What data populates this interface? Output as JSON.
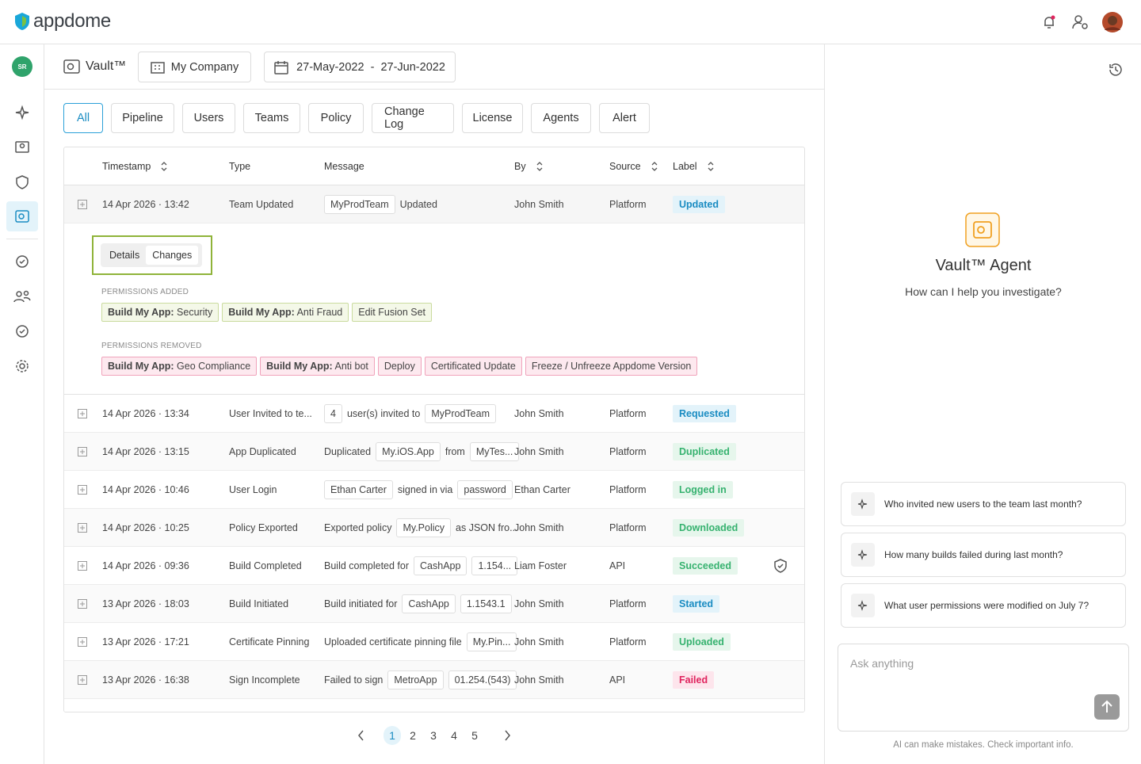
{
  "header": {
    "brand": "appdome"
  },
  "sidebar": {
    "badge": "SR"
  },
  "toolbar": {
    "title": "Vault™",
    "company": "My Company",
    "date_range": "27-May-2022  -  27-Jun-2022"
  },
  "tabs": {
    "items": [
      "All",
      "Pipeline",
      "Users",
      "Teams",
      "Policy",
      "Change Log",
      "License",
      "Agents",
      "Alert"
    ],
    "active": 0
  },
  "table": {
    "columns": [
      {
        "name": "Timestamp",
        "sortable": true
      },
      {
        "name": "Type",
        "sortable": false
      },
      {
        "name": "Message",
        "sortable": false
      },
      {
        "name": "By",
        "sortable": true
      },
      {
        "name": "Source",
        "sortable": true
      },
      {
        "name": "Label",
        "sortable": true
      }
    ],
    "rows": [
      {
        "timestamp": "14 Apr 2026 · 13:42",
        "type": "Team Updated",
        "message": [
          {
            "text": "MyProdTeam",
            "chip": true
          },
          {
            "text": "Updated",
            "chip": false
          }
        ],
        "by": "John Smith",
        "source": "Platform",
        "label": "Updated",
        "label_color": "#1a8cc2",
        "label_bg": "#e3f3fa",
        "expanded": true,
        "shield": false
      },
      {
        "timestamp": "14 Apr 2026 · 13:34",
        "type": "User Invited to te...",
        "message": [
          {
            "text": "4",
            "chip": true
          },
          {
            "text": "user(s) invited to",
            "chip": false
          },
          {
            "text": "MyProdTeam",
            "chip": true
          }
        ],
        "by": "John Smith",
        "source": "Platform",
        "label": "Requested",
        "label_color": "#1a8cc2",
        "label_bg": "#e3f3fa",
        "expanded": false,
        "shield": false
      },
      {
        "timestamp": "14 Apr 2026 · 13:15",
        "type": "App Duplicated",
        "message": [
          {
            "text": "Duplicated",
            "chip": false
          },
          {
            "text": "My.iOS.App",
            "chip": true
          },
          {
            "text": "from",
            "chip": false
          },
          {
            "text": "MyTes...",
            "chip": true
          }
        ],
        "by": "John Smith",
        "source": "Platform",
        "label": "Duplicated",
        "label_color": "#36b26f",
        "label_bg": "#e6f6ec",
        "expanded": false,
        "shield": false
      },
      {
        "timestamp": "14 Apr 2026 · 10:46",
        "type": "User Login",
        "message": [
          {
            "text": "Ethan Carter",
            "chip": true
          },
          {
            "text": "signed in via",
            "chip": false
          },
          {
            "text": "password",
            "chip": true
          }
        ],
        "by": "Ethan Carter",
        "source": "Platform",
        "label": "Logged in",
        "label_color": "#36b26f",
        "label_bg": "#e6f6ec",
        "expanded": false,
        "shield": false
      },
      {
        "timestamp": "14 Apr 2026 · 10:25",
        "type": "Policy Exported",
        "message": [
          {
            "text": "Exported policy",
            "chip": false
          },
          {
            "text": "My.Policy",
            "chip": true
          },
          {
            "text": "as JSON fro...",
            "chip": false
          }
        ],
        "by": "John Smith",
        "source": "Platform",
        "label": "Downloaded",
        "label_color": "#36b26f",
        "label_bg": "#e6f6ec",
        "expanded": false,
        "shield": false
      },
      {
        "timestamp": "14 Apr 2026 · 09:36",
        "type": "Build Completed",
        "message": [
          {
            "text": "Build completed for",
            "chip": false
          },
          {
            "text": "CashApp",
            "chip": true
          },
          {
            "text": "1.154...",
            "chip": true
          }
        ],
        "by": "Liam Foster",
        "source": "API",
        "label": "Succeeded",
        "label_color": "#36b26f",
        "label_bg": "#e6f6ec",
        "expanded": false,
        "shield": true
      },
      {
        "timestamp": "13 Apr 2026 · 18:03",
        "type": "Build Initiated",
        "message": [
          {
            "text": "Build initiated for",
            "chip": false
          },
          {
            "text": "CashApp",
            "chip": true
          },
          {
            "text": "1.1543.1",
            "chip": true
          }
        ],
        "by": "John Smith",
        "source": "Platform",
        "label": "Started",
        "label_color": "#1a8cc2",
        "label_bg": "#e3f3fa",
        "expanded": false,
        "shield": false
      },
      {
        "timestamp": "13 Apr 2026 · 17:21",
        "type": "Certificate Pinning",
        "message": [
          {
            "text": "Uploaded certificate pinning file",
            "chip": false
          },
          {
            "text": "My.Pin...",
            "chip": true
          }
        ],
        "by": "John Smith",
        "source": "Platform",
        "label": "Uploaded",
        "label_color": "#36b26f",
        "label_bg": "#e6f6ec",
        "expanded": false,
        "shield": false
      },
      {
        "timestamp": "13 Apr 2026 · 16:38",
        "type": "Sign Incomplete",
        "message": [
          {
            "text": "Failed to sign",
            "chip": false
          },
          {
            "text": "MetroApp",
            "chip": true
          },
          {
            "text": "01.254.(543)",
            "chip": true
          }
        ],
        "by": "John Smith",
        "source": "API",
        "label": "Failed",
        "label_color": "#e0245e",
        "label_bg": "#fde5ec",
        "expanded": false,
        "shield": false
      }
    ]
  },
  "details": {
    "toggle": [
      "Details",
      "Changes"
    ],
    "added_title": "PERMISSIONS ADDED",
    "added": [
      {
        "prefix": "Build My App:",
        "text": "Security"
      },
      {
        "prefix": "Build My App:",
        "text": "Anti Fraud"
      },
      {
        "prefix": "",
        "text": "Edit Fusion Set"
      }
    ],
    "removed_title": "PERMISSIONS REMOVED",
    "removed": [
      {
        "prefix": "Build My App:",
        "text": "Geo Compliance"
      },
      {
        "prefix": "Build My App:",
        "text": "Anti bot"
      },
      {
        "prefix": "",
        "text": "Deploy"
      },
      {
        "prefix": "",
        "text": "Certificated Update"
      },
      {
        "prefix": "",
        "text": "Freeze / Unfreeze Appdome Version"
      }
    ]
  },
  "pagination": {
    "pages": [
      1,
      2,
      3,
      4,
      5
    ],
    "current": 1
  },
  "agent": {
    "title": "Vault™ Agent",
    "subtitle": "How can I help you investigate?",
    "suggestions": [
      "Who invited new users to the team last month?",
      "How many builds failed during last month?",
      "What user permissions were modified on July 7?"
    ],
    "placeholder": "Ask anything",
    "disclaimer": "AI can make mistakes. Check important info."
  }
}
